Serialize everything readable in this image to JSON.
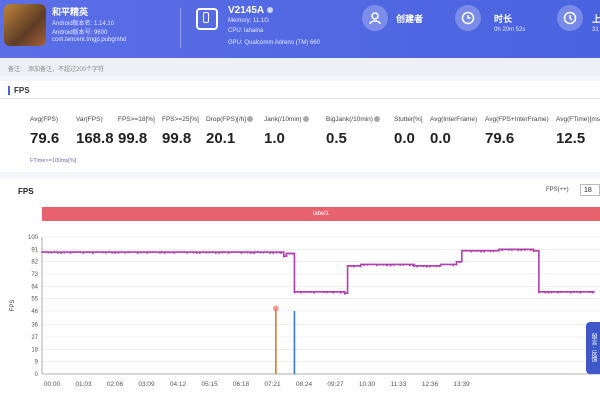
{
  "header": {
    "app": {
      "name": "和平精英",
      "android_version": "Android版本名: 1.14.10",
      "android_build": "Android版本号: 9600",
      "package": "com.tencent.tmgp.pubgmhd"
    },
    "device": {
      "name": "V2145A",
      "memory": "Memory: 11.1G",
      "cpu": "CPU: lahaina",
      "gpu": "GPU: Qualcomm Adreno (TM) 660"
    },
    "creator": {
      "label": "创建者"
    },
    "duration": {
      "label": "时长",
      "value": "0h 20m 52s"
    },
    "upload": {
      "label": "上",
      "value": "31"
    }
  },
  "note": {
    "label": "备注:",
    "placeholder": "添加备注，不超过200个字符"
  },
  "section": {
    "title": "FPS"
  },
  "metrics": [
    {
      "label": "Avg(FPS)",
      "value": "79.6"
    },
    {
      "label": "Var(FPS)",
      "value": "168.8"
    },
    {
      "label": "FPS>=18[%]",
      "value": "99.8"
    },
    {
      "label": "FPS>=25[%]",
      "value": "99.8"
    },
    {
      "label": "Drop(FPS)[/h]",
      "value": "20.1"
    },
    {
      "label": "Jank(/10min)",
      "value": "1.0"
    },
    {
      "label": "BigJank(/10min)",
      "value": "0.5"
    },
    {
      "label": "Stutter[%]",
      "value": "0.0"
    },
    {
      "label": "Avg(InterFrame)",
      "value": "0.0"
    },
    {
      "label": "Avg(FPS+InterFrame)",
      "value": "79.6"
    },
    {
      "label": "Avg(FTime)[ms]",
      "value": "12.5"
    }
  ],
  "legend_note": "FTime>=100ms[%]",
  "chart_section": {
    "title": "FPS",
    "select_label": "FPS(++)",
    "select_value": "18",
    "label_bar": "label1"
  },
  "side_tab": "留言 · 反馈",
  "colors": {
    "header": "#4a63e0",
    "fps_line": "#b040b0",
    "jank": "#e07a20",
    "bigjank": "#3a78d0",
    "label_bar": "#e8626e"
  },
  "chart_data": {
    "type": "line",
    "title": "FPS",
    "ylabel": "FPS",
    "ylim": [
      0,
      100
    ],
    "yticks": [
      0,
      9,
      18,
      27,
      36,
      46,
      55,
      64,
      73,
      82,
      91,
      100
    ],
    "xticks": [
      "00:00",
      "01:03",
      "02:06",
      "03:09",
      "04:12",
      "05:15",
      "06:18",
      "07:21",
      "08:24",
      "09:27",
      "10:30",
      "11:33",
      "12:36",
      "13:39"
    ],
    "x_minutes": [
      0,
      4.5,
      9.0,
      9.1,
      9.2,
      9.5,
      10.0,
      11.0,
      11.4,
      11.5,
      12.0,
      13.0,
      14.0,
      15.0,
      15.6,
      15.8,
      17.0,
      17.2,
      18.5,
      18.7,
      20.8
    ],
    "series": [
      {
        "name": "FPS",
        "values": [
          89,
          89,
          89,
          86,
          88,
          60,
          60,
          60,
          59,
          79,
          80,
          80,
          79,
          80,
          82,
          90,
          90,
          91,
          90,
          60,
          60
        ]
      }
    ],
    "spikes": [
      {
        "x_minutes": 8.8,
        "value": 48,
        "color": "jank"
      },
      {
        "x_minutes": 9.5,
        "value": 46,
        "color": "bigjank"
      }
    ],
    "grid": true
  }
}
